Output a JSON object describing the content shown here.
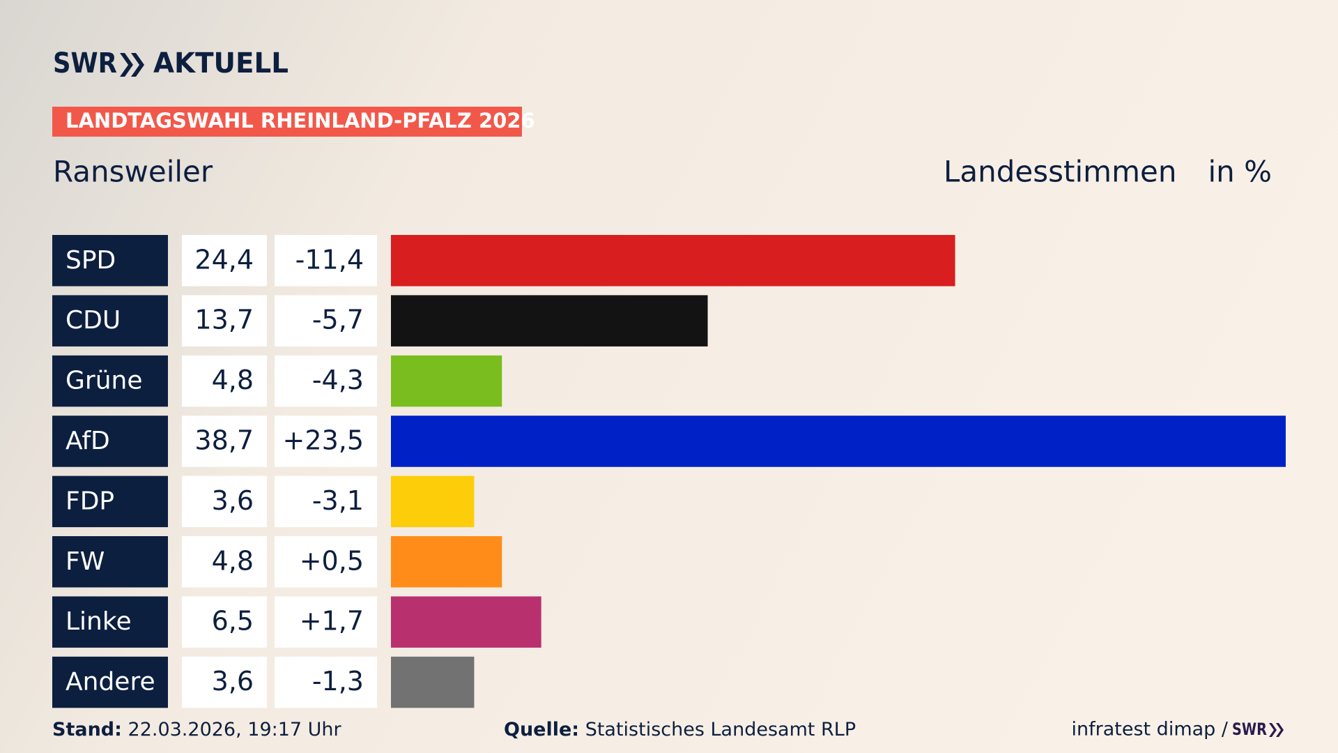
{
  "chart_data": {
    "type": "bar",
    "logo": "SWR",
    "logo_text": "AKTUELL",
    "title": "LANDTAGSWAHL RHEINLAND-PFALZ 2026",
    "location": "Ransweiler",
    "measure": "Landesstimmen",
    "unit": "in %",
    "categories": [
      "SPD",
      "CDU",
      "Grüne",
      "AfD",
      "FDP",
      "FW",
      "Linke",
      "Andere"
    ],
    "values": [
      24.4,
      13.7,
      4.8,
      38.7,
      3.6,
      4.8,
      6.5,
      3.6
    ],
    "value_labels": [
      "24,4",
      "13,7",
      "4,8",
      "38,7",
      "3,6",
      "4,8",
      "6,5",
      "3,6"
    ],
    "change_labels": [
      "-11,4",
      "-5,7",
      "-4,3",
      "+23,5",
      "-3,1",
      "+0,5",
      "+1,7",
      "-1,3"
    ],
    "colors": [
      "#d81e1e",
      "#131313",
      "#7abd1e",
      "#0021c6",
      "#fdcd0a",
      "#ff8c19",
      "#b9306f",
      "#727272"
    ],
    "footer": {
      "stand_label": "Stand:",
      "stand": "22.03.2026, 19:17 Uhr",
      "source_label": "Quelle:",
      "source": "Statistisches Landesamt RLP",
      "credit": "infratest dimap /",
      "credit_logo": "SWR"
    }
  }
}
